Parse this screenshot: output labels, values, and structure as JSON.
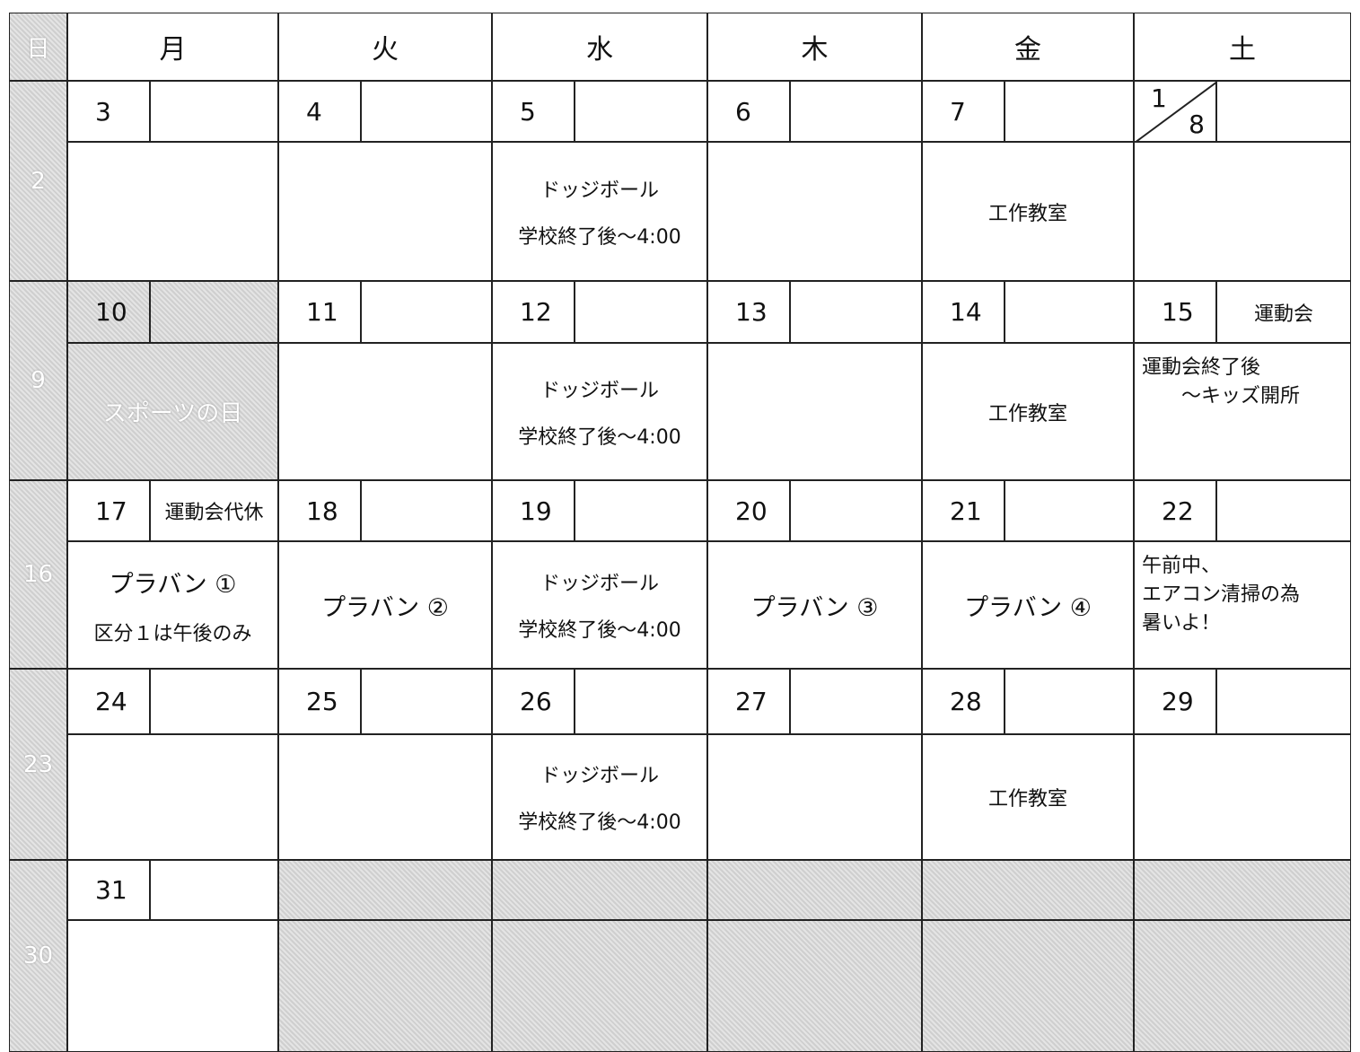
{
  "header": {
    "days": [
      "日",
      "月",
      "火",
      "水",
      "木",
      "金",
      "土"
    ]
  },
  "weeks": [
    {
      "sunday": "2",
      "days": [
        {
          "date": "3"
        },
        {
          "date": "4"
        },
        {
          "date": "5",
          "lines": [
            "ドッジボール",
            "学校終了後～4:00"
          ]
        },
        {
          "date": "6"
        },
        {
          "date": "7",
          "lines": [
            "工作教室"
          ]
        },
        {
          "date": "1",
          "date2": "8"
        }
      ]
    },
    {
      "sunday": "9",
      "days": [
        {
          "date": "10",
          "shaded": true,
          "lines": [
            "スポーツの日"
          ]
        },
        {
          "date": "11"
        },
        {
          "date": "12",
          "lines": [
            "ドッジボール",
            "学校終了後～4:00"
          ]
        },
        {
          "date": "13"
        },
        {
          "date": "14",
          "lines": [
            "工作教室"
          ]
        },
        {
          "date": "15",
          "note": "運動会",
          "lines": [
            "運動会終了後",
            "　　～キッズ開所"
          ],
          "align": "left"
        }
      ]
    },
    {
      "sunday": "16",
      "days": [
        {
          "date": "17",
          "note": "運動会代休",
          "lines": [
            "プラバン ①",
            "区分１は午後のみ"
          ]
        },
        {
          "date": "18",
          "lines": [
            "プラバン ②"
          ]
        },
        {
          "date": "19",
          "lines": [
            "ドッジボール",
            "学校終了後～4:00"
          ]
        },
        {
          "date": "20",
          "lines": [
            "プラバン ③"
          ]
        },
        {
          "date": "21",
          "lines": [
            "プラバン ④"
          ]
        },
        {
          "date": "22",
          "lines": [
            "午前中、",
            "エアコン清掃の為",
            "暑いよ！"
          ],
          "align": "left"
        }
      ]
    },
    {
      "sunday": "23",
      "days": [
        {
          "date": "24"
        },
        {
          "date": "25"
        },
        {
          "date": "26",
          "lines": [
            "ドッジボール",
            "学校終了後～4:00"
          ]
        },
        {
          "date": "27"
        },
        {
          "date": "28",
          "lines": [
            "工作教室"
          ]
        },
        {
          "date": "29"
        }
      ]
    },
    {
      "sunday": "30",
      "days": [
        {
          "date": "31"
        }
      ]
    }
  ]
}
